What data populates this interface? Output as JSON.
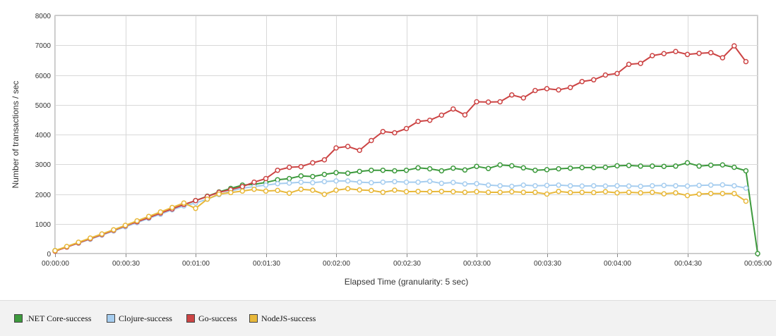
{
  "chart_data": {
    "type": "line",
    "title": "",
    "xlabel": "Elapsed Time (granularity: 5 sec)",
    "ylabel": "Number of transactions / sec",
    "xlim": [
      0,
      300
    ],
    "ylim": [
      0,
      8000
    ],
    "yticks": [
      0,
      1000,
      2000,
      3000,
      4000,
      5000,
      6000,
      7000,
      8000
    ],
    "xticks": [
      "00:00:00",
      "00:00:30",
      "00:01:00",
      "00:01:30",
      "00:02:00",
      "00:02:30",
      "00:03:00",
      "00:03:30",
      "00:04:00",
      "00:04:30",
      "00:05:00"
    ],
    "grid": true,
    "legend_position": "bottom",
    "series": [
      {
        "name": ".NET Core-success",
        "color": "#3d9a3d",
        "x": [
          0,
          5,
          10,
          15,
          20,
          25,
          30,
          35,
          40,
          45,
          50,
          55,
          60,
          65,
          70,
          75,
          80,
          85,
          90,
          95,
          100,
          105,
          110,
          115,
          120,
          125,
          130,
          135,
          140,
          145,
          150,
          155,
          160,
          165,
          170,
          175,
          180,
          185,
          190,
          195,
          200,
          205,
          210,
          215,
          220,
          225,
          230,
          235,
          240,
          245,
          250,
          255,
          260,
          265,
          270,
          275,
          280,
          285,
          290,
          295,
          300
        ],
        "values": [
          100,
          230,
          360,
          500,
          640,
          780,
          920,
          1070,
          1210,
          1350,
          1500,
          1640,
          1780,
          1930,
          2070,
          2190,
          2300,
          2330,
          2390,
          2480,
          2520,
          2610,
          2590,
          2660,
          2720,
          2700,
          2760,
          2800,
          2800,
          2780,
          2800,
          2880,
          2850,
          2780,
          2870,
          2810,
          2930,
          2860,
          2980,
          2950,
          2880,
          2800,
          2820,
          2850,
          2870,
          2890,
          2890,
          2900,
          2950,
          2960,
          2940,
          2940,
          2930,
          2940,
          3050,
          2940,
          2970,
          2980,
          2900,
          2780,
          0
        ]
      },
      {
        "name": "Clojure-success",
        "color": "#a6cdef",
        "x": [
          0,
          5,
          10,
          15,
          20,
          25,
          30,
          35,
          40,
          45,
          50,
          55,
          60,
          65,
          70,
          75,
          80,
          85,
          90,
          95,
          100,
          105,
          110,
          115,
          120,
          125,
          130,
          135,
          140,
          145,
          150,
          155,
          160,
          165,
          170,
          175,
          180,
          185,
          190,
          195,
          200,
          205,
          210,
          215,
          220,
          225,
          230,
          235,
          240,
          245,
          250,
          255,
          260,
          265,
          270,
          275,
          280,
          285,
          290,
          295
        ],
        "values": [
          90,
          220,
          350,
          480,
          620,
          760,
          900,
          1040,
          1180,
          1320,
          1470,
          1600,
          1700,
          1830,
          1980,
          2100,
          2200,
          2250,
          2300,
          2350,
          2370,
          2400,
          2380,
          2420,
          2440,
          2440,
          2400,
          2380,
          2400,
          2420,
          2400,
          2400,
          2430,
          2360,
          2390,
          2340,
          2350,
          2300,
          2280,
          2260,
          2300,
          2280,
          2290,
          2300,
          2280,
          2270,
          2280,
          2270,
          2280,
          2270,
          2260,
          2280,
          2290,
          2280,
          2270,
          2290,
          2300,
          2310,
          2280,
          2200
        ]
      },
      {
        "name": "Go-success",
        "color": "#cc4444",
        "x": [
          0,
          5,
          10,
          15,
          20,
          25,
          30,
          35,
          40,
          45,
          50,
          55,
          60,
          65,
          70,
          75,
          80,
          85,
          90,
          95,
          100,
          105,
          110,
          115,
          120,
          125,
          130,
          135,
          140,
          145,
          150,
          155,
          160,
          165,
          170,
          175,
          180,
          185,
          190,
          195,
          200,
          205,
          210,
          215,
          220,
          225,
          230,
          235,
          240,
          245,
          250,
          255,
          260,
          265,
          270,
          275,
          280,
          285,
          290,
          295
        ],
        "values": [
          80,
          220,
          360,
          500,
          640,
          780,
          930,
          1070,
          1210,
          1360,
          1500,
          1650,
          1780,
          1920,
          2060,
          2150,
          2250,
          2400,
          2520,
          2800,
          2900,
          2920,
          3050,
          3150,
          3550,
          3600,
          3470,
          3800,
          4100,
          4060,
          4200,
          4440,
          4480,
          4650,
          4860,
          4660,
          5100,
          5090,
          5100,
          5330,
          5230,
          5480,
          5540,
          5500,
          5580,
          5780,
          5840,
          6000,
          6050,
          6360,
          6390,
          6650,
          6720,
          6790,
          6690,
          6730,
          6750,
          6580,
          6980,
          6450
        ]
      },
      {
        "name": "NodeJS-success",
        "color": "#e8b83a",
        "x": [
          0,
          5,
          10,
          15,
          20,
          25,
          30,
          35,
          40,
          45,
          50,
          55,
          60,
          65,
          70,
          75,
          80,
          85,
          90,
          95,
          100,
          105,
          110,
          115,
          120,
          125,
          130,
          135,
          140,
          145,
          150,
          155,
          160,
          165,
          170,
          175,
          180,
          185,
          190,
          195,
          200,
          205,
          210,
          215,
          220,
          225,
          230,
          235,
          240,
          245,
          250,
          255,
          260,
          265,
          270,
          275,
          280,
          285,
          290,
          295
        ],
        "values": [
          100,
          240,
          380,
          520,
          660,
          800,
          950,
          1100,
          1250,
          1400,
          1550,
          1700,
          1520,
          1830,
          2000,
          2050,
          2100,
          2160,
          2100,
          2120,
          2030,
          2160,
          2130,
          1990,
          2130,
          2180,
          2140,
          2120,
          2060,
          2130,
          2080,
          2090,
          2080,
          2090,
          2080,
          2060,
          2080,
          2060,
          2060,
          2080,
          2060,
          2060,
          2000,
          2090,
          2050,
          2060,
          2050,
          2080,
          2040,
          2060,
          2040,
          2060,
          2010,
          2040,
          1950,
          2000,
          2020,
          2020,
          2020,
          1760
        ]
      }
    ]
  }
}
